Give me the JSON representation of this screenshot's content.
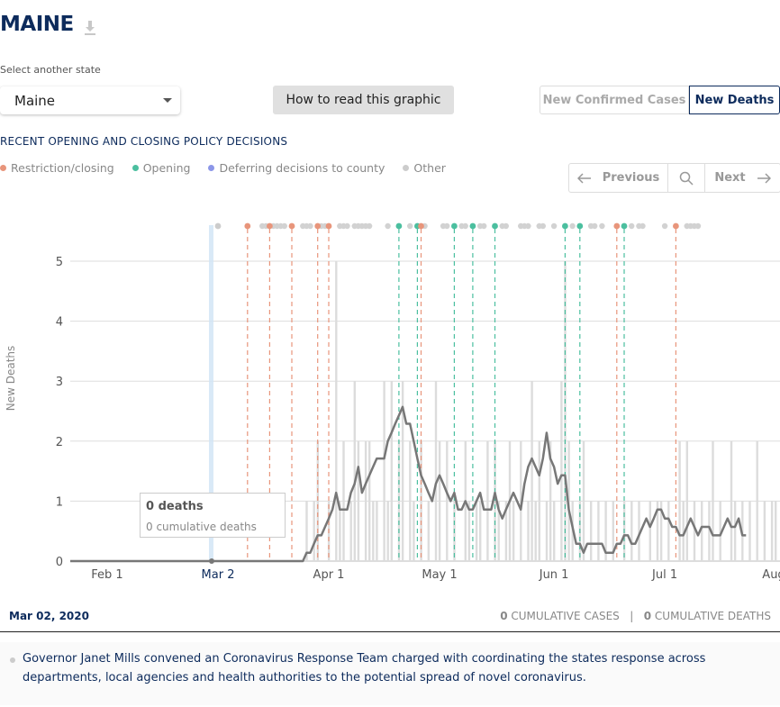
{
  "header": {
    "title": "MAINE",
    "download_icon": "download-icon"
  },
  "state_select": {
    "label": "Select another state",
    "value": "Maine"
  },
  "how_to_button": "How to read this graphic",
  "metric_toggle": {
    "options": [
      "New Confirmed Cases",
      "New Deaths"
    ],
    "selected": "New Deaths"
  },
  "policy_section": {
    "title": "RECENT OPENING AND CLOSING POLICY DECISIONS",
    "legend": [
      {
        "label": "Restriction/closing",
        "color": "#e8957b"
      },
      {
        "label": "Opening",
        "color": "#4bbf9f"
      },
      {
        "label": "Deferring decisions to county",
        "color": "#8c96e8"
      },
      {
        "label": "Other",
        "color": "#cccccc"
      }
    ]
  },
  "nav": {
    "previous": "Previous",
    "next": "Next",
    "search_icon": "search-icon"
  },
  "tooltip": {
    "deaths": "0 deaths",
    "cumulative": "0 cumulative deaths"
  },
  "chart_data": {
    "type": "bar",
    "ylabel": "New Deaths",
    "ylim": [
      0,
      5.5
    ],
    "yticks": [
      0,
      1,
      2,
      3,
      4,
      5
    ],
    "xticks": [
      "Feb 1",
      "Mar 2",
      "Apr 1",
      "May 1",
      "Jun 1",
      "Jul 1",
      "Aug 1"
    ],
    "start_date": "2020-01-22",
    "selected_date": "Mar 2",
    "daily_deaths": [
      0,
      0,
      0,
      0,
      0,
      0,
      0,
      0,
      0,
      0,
      0,
      0,
      0,
      0,
      0,
      0,
      0,
      0,
      0,
      0,
      0,
      0,
      0,
      0,
      0,
      0,
      0,
      0,
      0,
      0,
      0,
      0,
      0,
      0,
      0,
      0,
      0,
      0,
      0,
      0,
      0,
      0,
      0,
      0,
      0,
      0,
      0,
      0,
      0,
      0,
      0,
      0,
      0,
      0,
      0,
      0,
      0,
      0,
      0,
      0,
      0,
      0,
      0,
      0,
      1,
      0,
      1,
      2,
      0,
      0,
      1,
      0,
      5,
      1,
      2,
      0,
      1,
      3,
      2,
      0,
      2,
      2,
      1,
      1,
      0,
      3,
      1,
      3,
      0,
      2,
      3,
      0,
      2,
      1,
      0,
      2,
      0,
      1,
      0,
      3,
      2,
      0,
      2,
      0,
      1,
      0,
      0,
      2,
      1,
      0,
      1,
      1,
      0,
      2,
      0,
      2,
      1,
      0,
      1,
      2,
      1,
      0,
      2,
      0,
      1,
      3,
      1,
      2,
      0,
      1,
      2,
      1,
      0,
      3,
      5,
      2,
      1,
      0,
      1,
      2,
      0,
      1,
      0,
      1,
      0,
      1,
      0,
      1,
      0,
      0,
      1,
      0,
      1,
      0,
      1,
      0,
      0,
      1,
      0,
      1,
      1,
      0,
      1,
      0,
      0,
      2,
      1,
      2,
      0,
      1,
      0,
      1,
      0,
      1,
      2,
      0,
      1,
      0,
      0,
      2,
      1,
      0,
      1,
      0,
      1,
      0,
      2,
      0,
      1,
      0,
      1,
      1,
      0,
      1
    ],
    "seven_day_average": [
      0,
      0,
      0,
      0,
      0,
      0,
      0,
      0,
      0,
      0,
      0,
      0,
      0,
      0,
      0,
      0,
      0,
      0,
      0,
      0,
      0,
      0,
      0,
      0,
      0,
      0,
      0,
      0,
      0,
      0,
      0,
      0,
      0,
      0,
      0,
      0,
      0,
      0,
      0,
      0,
      0,
      0,
      0,
      0,
      0,
      0,
      0,
      0,
      0,
      0,
      0,
      0,
      0,
      0,
      0,
      0,
      0,
      0,
      0,
      0,
      0,
      0,
      0,
      0,
      0.14,
      0.14,
      0.29,
      0.43,
      0.43,
      0.57,
      0.71,
      0.86,
      1.14,
      0.86,
      0.86,
      0.86,
      1.14,
      1.29,
      1.57,
      1.14,
      1.29,
      1.43,
      1.57,
      1.71,
      1.71,
      1.71,
      2.0,
      2.14,
      2.29,
      2.43,
      2.57,
      2.29,
      2.29,
      2.0,
      1.71,
      1.43,
      1.29,
      1.14,
      1.0,
      1.29,
      1.43,
      1.29,
      1.14,
      1.0,
      1.14,
      0.86,
      0.86,
      1.0,
      0.86,
      0.86,
      1.0,
      1.14,
      0.86,
      0.86,
      0.86,
      1.14,
      0.86,
      0.71,
      0.86,
      1.0,
      1.14,
      1.0,
      0.86,
      1.29,
      1.57,
      1.71,
      1.57,
      1.43,
      1.71,
      2.14,
      1.71,
      1.57,
      1.29,
      1.43,
      1.43,
      0.86,
      0.57,
      0.29,
      0.29,
      0.14,
      0.29,
      0.29,
      0.29,
      0.29,
      0.29,
      0.14,
      0.14,
      0.14,
      0.29,
      0.29,
      0.43,
      0.43,
      0.29,
      0.29,
      0.43,
      0.57,
      0.71,
      0.57,
      0.71,
      0.86,
      0.86,
      0.71,
      0.71,
      0.57,
      0.57,
      0.43,
      0.43,
      0.57,
      0.71,
      0.57,
      0.43,
      0.57,
      0.57,
      0.57,
      0.43,
      0.43,
      0.43,
      0.57,
      0.71,
      0.57,
      0.57,
      0.71,
      0.43,
      0.43
    ],
    "policy_markers": [
      {
        "date_index": 40,
        "type": "Other",
        "line": false
      },
      {
        "date_index": 48,
        "type": "Restriction/closing",
        "line": true
      },
      {
        "date_index": 54,
        "type": "Restriction/closing",
        "line": true
      },
      {
        "date_index": 60,
        "type": "Restriction/closing",
        "line": true
      },
      {
        "date_index": 67,
        "type": "Restriction/closing",
        "line": true
      },
      {
        "date_index": 70,
        "type": "Restriction/closing",
        "line": true
      },
      {
        "date_index": 89,
        "type": "Opening",
        "line": true
      },
      {
        "date_index": 94,
        "type": "Opening",
        "line": true
      },
      {
        "date_index": 95,
        "type": "Restriction/closing",
        "line": true
      },
      {
        "date_index": 104,
        "type": "Opening",
        "line": true
      },
      {
        "date_index": 109,
        "type": "Opening",
        "line": true
      },
      {
        "date_index": 115,
        "type": "Opening",
        "line": true
      },
      {
        "date_index": 134,
        "type": "Opening",
        "line": true
      },
      {
        "date_index": 138,
        "type": "Opening",
        "line": true
      },
      {
        "date_index": 148,
        "type": "Restriction/closing",
        "line": true
      },
      {
        "date_index": 150,
        "type": "Opening",
        "line": true
      },
      {
        "date_index": 164,
        "type": "Restriction/closing",
        "line": true
      }
    ],
    "other_markers": [
      52,
      53,
      55,
      56,
      57,
      58,
      63,
      64,
      65,
      68,
      69,
      73,
      74,
      75,
      77,
      78,
      79,
      80,
      81,
      86,
      92,
      96,
      101,
      102,
      106,
      107,
      111,
      112,
      117,
      118,
      122,
      123,
      124,
      127,
      128,
      131,
      136,
      141,
      142,
      144,
      152,
      154,
      155,
      161,
      167,
      168,
      169,
      170
    ]
  },
  "footer": {
    "date": "Mar 02, 2020",
    "cases_count": "0",
    "cases_label": " CUMULATIVE CASES",
    "separator": "|",
    "deaths_count": "0",
    "deaths_label": " CUMULATIVE DEATHS"
  },
  "description": "Governor Janet Mills convened an Coronavirus Response Team charged with coordinating the states response across departments, local agencies and health authorities to the potential spread of novel coronavirus."
}
